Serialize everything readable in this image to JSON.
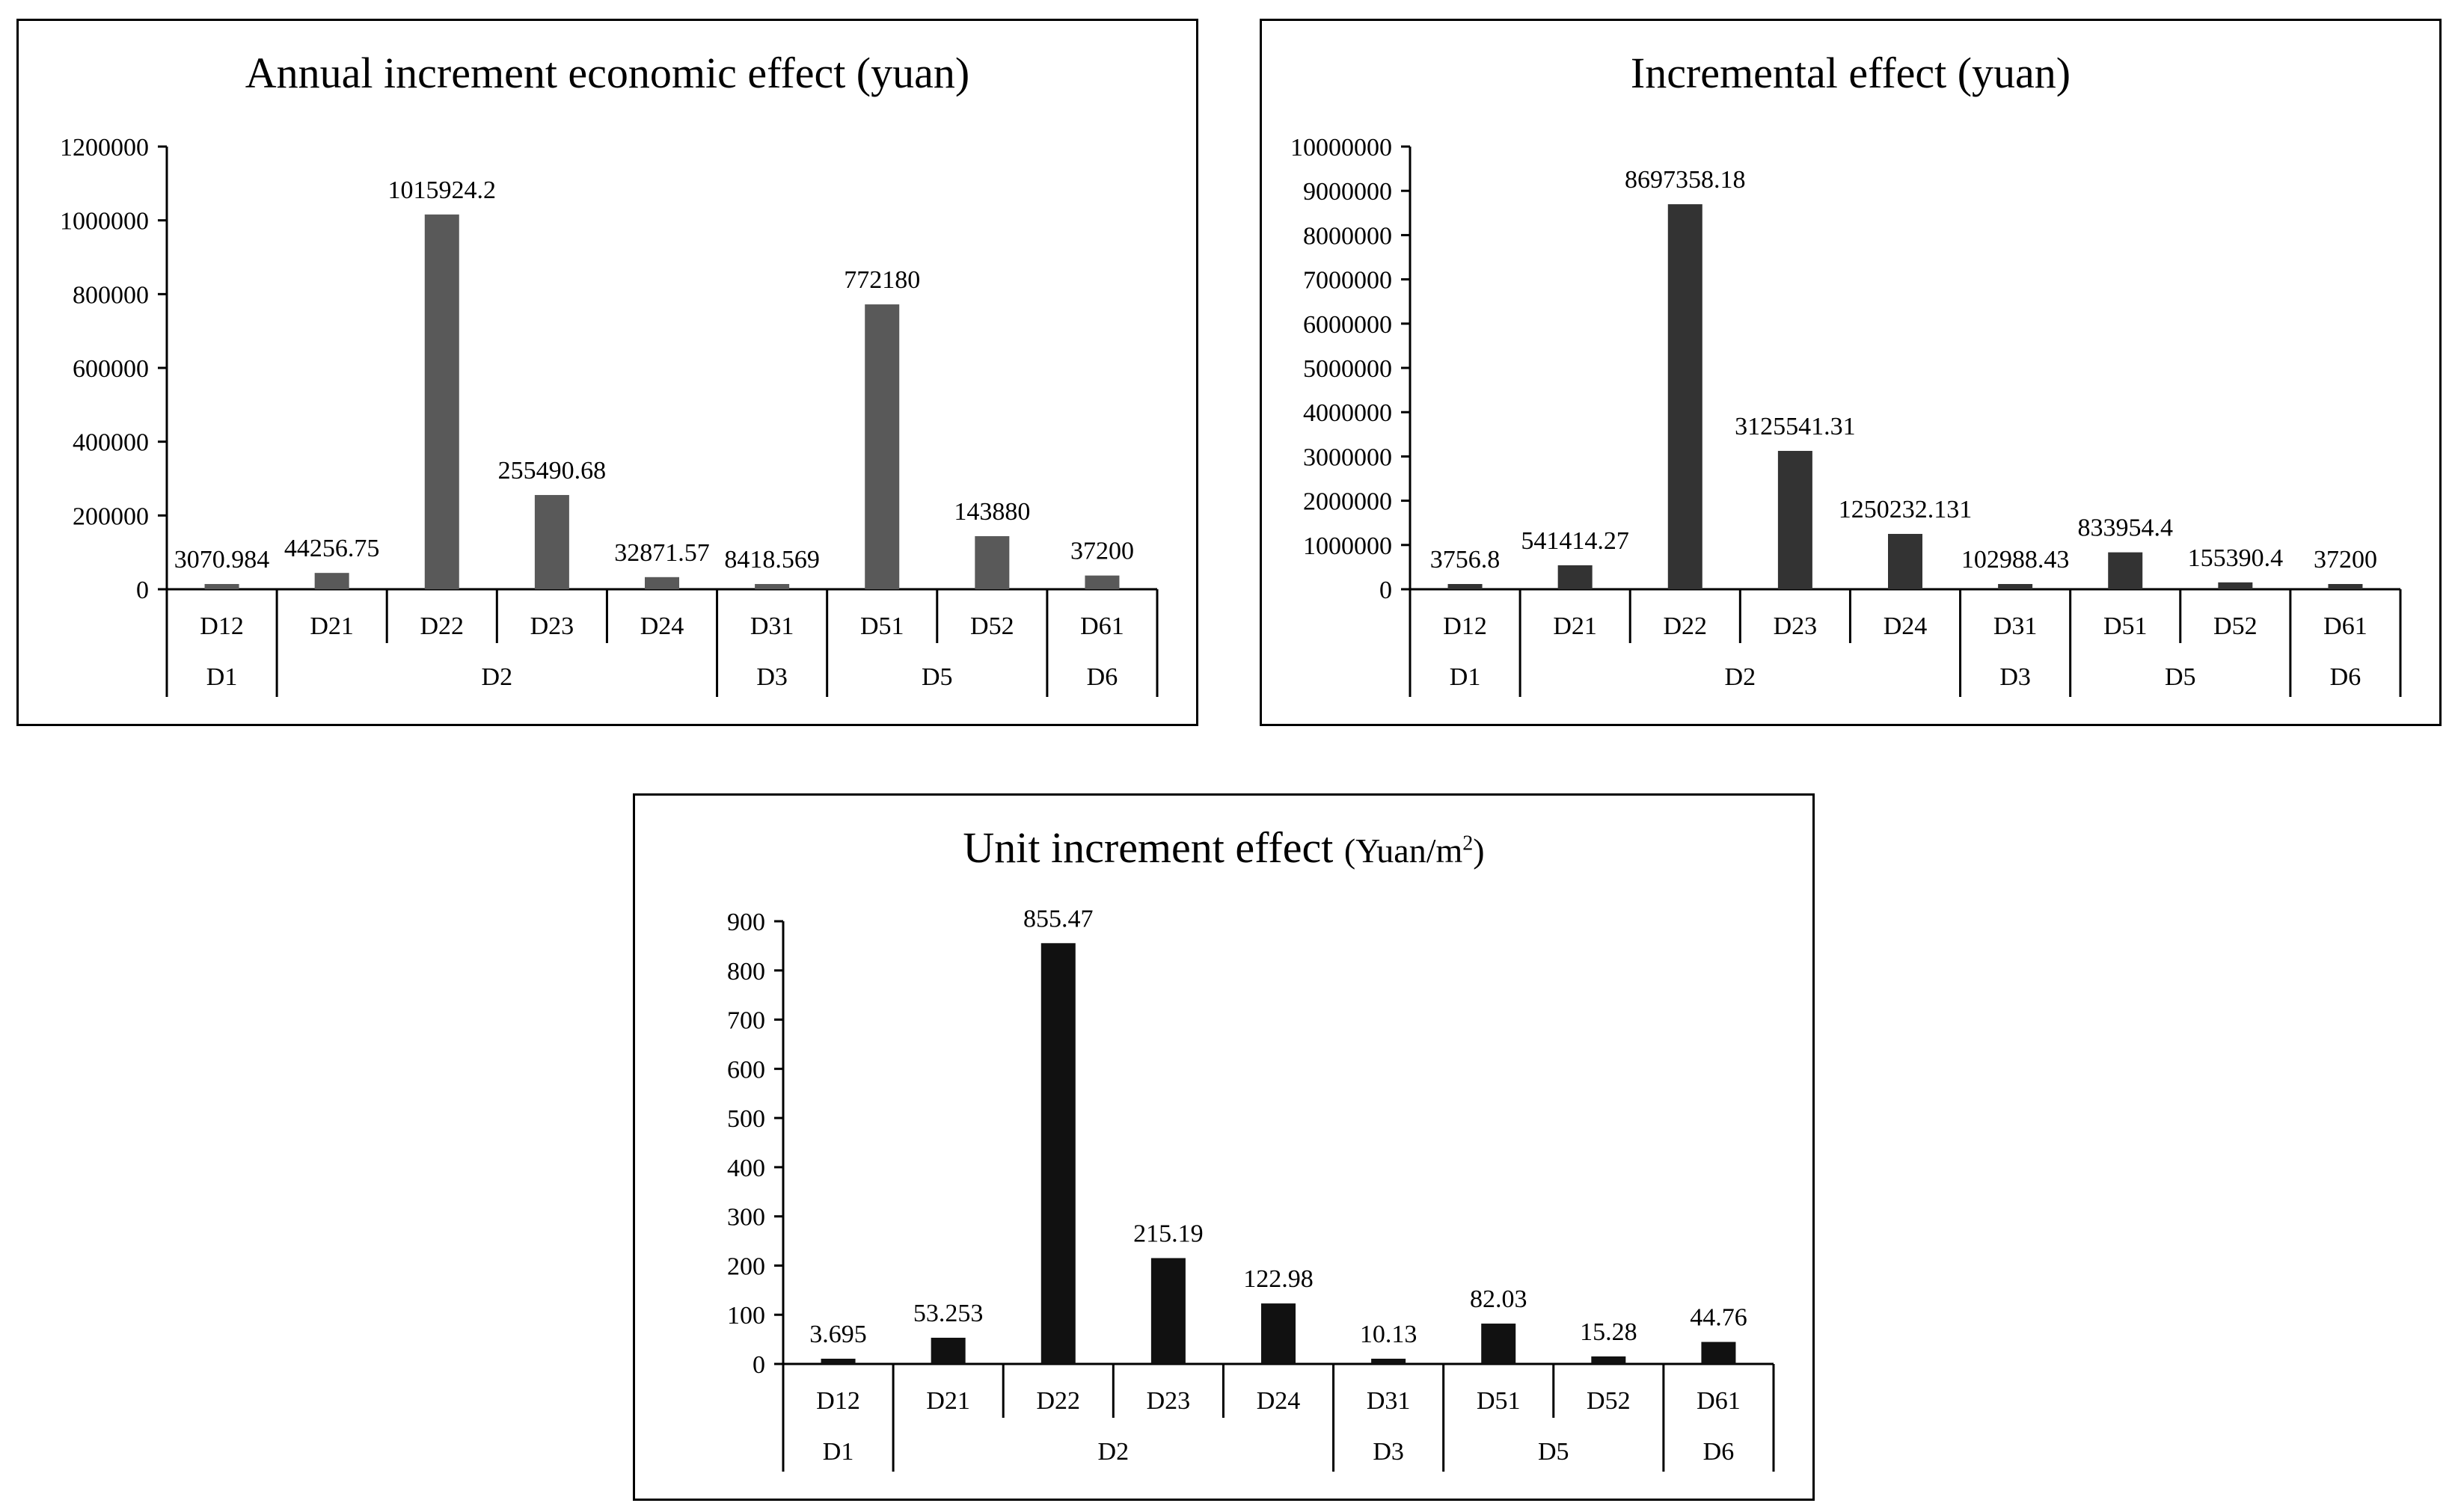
{
  "charts": {
    "annual": {
      "title": "Annual increment economic effect (yuan)",
      "bar_color": "#595959",
      "value_labels": [
        "3070.984",
        "44256.75",
        "1015924.2",
        "255490.68",
        "32871.57",
        "8418.569",
        "772180",
        "143880",
        "37200"
      ]
    },
    "incremental": {
      "title": "Incremental effect (yuan)",
      "bar_color": "#333333",
      "value_labels": [
        "3756.8",
        "541414.27",
        "8697358.18",
        "3125541.31",
        "1250232.131",
        "102988.43",
        "833954.4",
        "155390.4",
        "37200"
      ]
    },
    "unit": {
      "title_main": "Unit increment effect ",
      "title_unit": "(Yuan/m",
      "title_sup": "2",
      "title_close": ")",
      "bar_color": "#111111",
      "value_labels": [
        "3.695",
        "53.253",
        "855.47",
        "215.19",
        "122.98",
        "10.13",
        "82.03",
        "15.28",
        "44.76"
      ]
    }
  },
  "chart_data": [
    {
      "type": "bar",
      "title": "Annual increment economic effect (yuan)",
      "categories": [
        "D12",
        "D21",
        "D22",
        "D23",
        "D24",
        "D31",
        "D51",
        "D52",
        "D61"
      ],
      "groups": [
        {
          "label": "D1",
          "count": 1
        },
        {
          "label": "D2",
          "count": 4
        },
        {
          "label": "D3",
          "count": 1
        },
        {
          "label": "D5",
          "count": 2
        },
        {
          "label": "D6",
          "count": 1
        }
      ],
      "values": [
        3070.984,
        44256.75,
        1015924.2,
        255490.68,
        32871.57,
        8418.569,
        772180,
        143880,
        37200
      ],
      "ylim": [
        0,
        1200000
      ],
      "yticks": [
        0,
        200000,
        400000,
        600000,
        800000,
        1000000,
        1200000
      ],
      "xlabel": "",
      "ylabel": ""
    },
    {
      "type": "bar",
      "title": "Incremental effect (yuan)",
      "categories": [
        "D12",
        "D21",
        "D22",
        "D23",
        "D24",
        "D31",
        "D51",
        "D52",
        "D61"
      ],
      "groups": [
        {
          "label": "D1",
          "count": 1
        },
        {
          "label": "D2",
          "count": 4
        },
        {
          "label": "D3",
          "count": 1
        },
        {
          "label": "D5",
          "count": 2
        },
        {
          "label": "D6",
          "count": 1
        }
      ],
      "values": [
        3756.8,
        541414.27,
        8697358.18,
        3125541.31,
        1250232.131,
        102988.43,
        833954.4,
        155390.4,
        37200
      ],
      "ylim": [
        0,
        10000000
      ],
      "yticks": [
        0,
        1000000,
        2000000,
        3000000,
        4000000,
        5000000,
        6000000,
        7000000,
        8000000,
        9000000,
        10000000
      ],
      "xlabel": "",
      "ylabel": ""
    },
    {
      "type": "bar",
      "title": "Unit increment effect (Yuan/m2)",
      "categories": [
        "D12",
        "D21",
        "D22",
        "D23",
        "D24",
        "D31",
        "D51",
        "D52",
        "D61"
      ],
      "groups": [
        {
          "label": "D1",
          "count": 1
        },
        {
          "label": "D2",
          "count": 4
        },
        {
          "label": "D3",
          "count": 1
        },
        {
          "label": "D5",
          "count": 2
        },
        {
          "label": "D6",
          "count": 1
        }
      ],
      "values": [
        3.695,
        53.253,
        855.47,
        215.19,
        122.98,
        10.13,
        82.03,
        15.28,
        44.76
      ],
      "ylim": [
        0,
        900
      ],
      "yticks": [
        0,
        100,
        200,
        300,
        400,
        500,
        600,
        700,
        800,
        900
      ],
      "xlabel": "",
      "ylabel": ""
    }
  ]
}
